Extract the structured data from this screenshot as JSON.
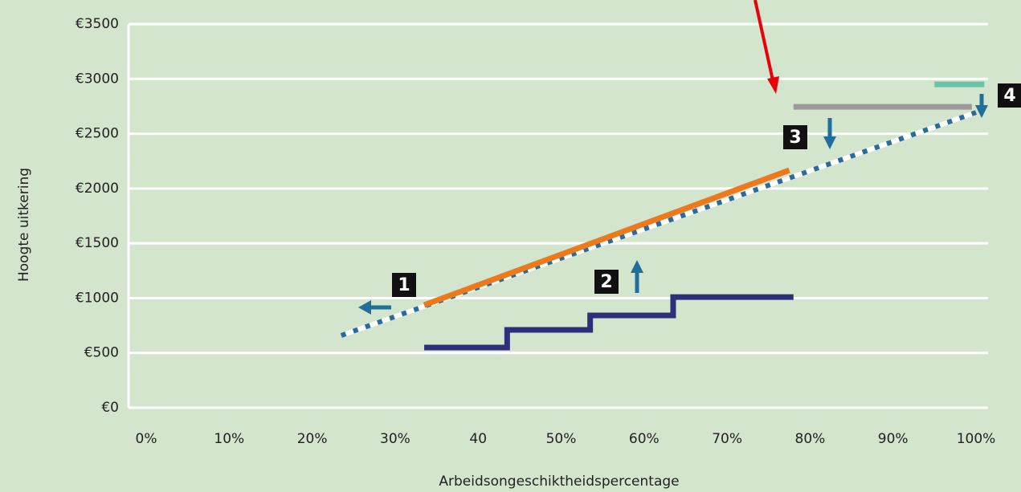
{
  "chart_data": {
    "type": "line",
    "x_label": "Arbeidsongeschiktheidspercentage",
    "y_label": "Hoogte uitkering",
    "xlim": [
      0,
      100
    ],
    "ylim": [
      0,
      3500
    ],
    "xticks": [
      {
        "value": 0,
        "label": "0%"
      },
      {
        "value": 10,
        "label": "10%"
      },
      {
        "value": 20,
        "label": "20%"
      },
      {
        "value": 30,
        "label": "30%"
      },
      40,
      {
        "value": 50,
        "label": "50%"
      },
      {
        "value": 60,
        "label": "60%"
      },
      {
        "value": 70,
        "label": "70%"
      },
      {
        "value": 80,
        "label": "80%"
      },
      {
        "value": 90,
        "label": "90%"
      },
      {
        "value": 100,
        "label": "100%"
      }
    ],
    "yticks": [
      {
        "value": 0,
        "label": "€0"
      },
      {
        "value": 500,
        "label": "€500"
      },
      {
        "value": 1000,
        "label": "€1000"
      },
      {
        "value": 1500,
        "label": "€1500"
      },
      {
        "value": 2000,
        "label": "€2000"
      },
      {
        "value": 2500,
        "label": "€2500"
      },
      {
        "value": 3000,
        "label": "€3000"
      },
      {
        "value": 3500,
        "label": "€3500"
      }
    ],
    "grid": true,
    "series": [
      {
        "color": "#2b6a9c",
        "style": "dotted",
        "x": [
          23.5,
          100
        ],
        "values": [
          659,
          2694
        ]
      },
      {
        "color": "#ec7a1c",
        "style": "solid",
        "x": [
          33.5,
          77.5
        ],
        "values": [
          937,
          2167
        ]
      },
      {
        "color": "#2e2f7a",
        "style": "solid",
        "x": [
          33.5,
          43.5,
          43.5,
          53.5,
          53.5,
          63.5,
          63.5,
          78
        ],
        "values": [
          549,
          549,
          710,
          710,
          842,
          842,
          1010,
          1010
        ]
      },
      {
        "color": "#9a9a9a",
        "style": "solid",
        "x": [
          78,
          99.5
        ],
        "values": [
          2745,
          2745
        ]
      },
      {
        "color": "#6cc3a6",
        "style": "solid",
        "x": [
          95,
          101
        ],
        "values": [
          2950,
          2950
        ]
      }
    ],
    "annotations": [
      "1",
      "2",
      "3",
      "4"
    ]
  }
}
